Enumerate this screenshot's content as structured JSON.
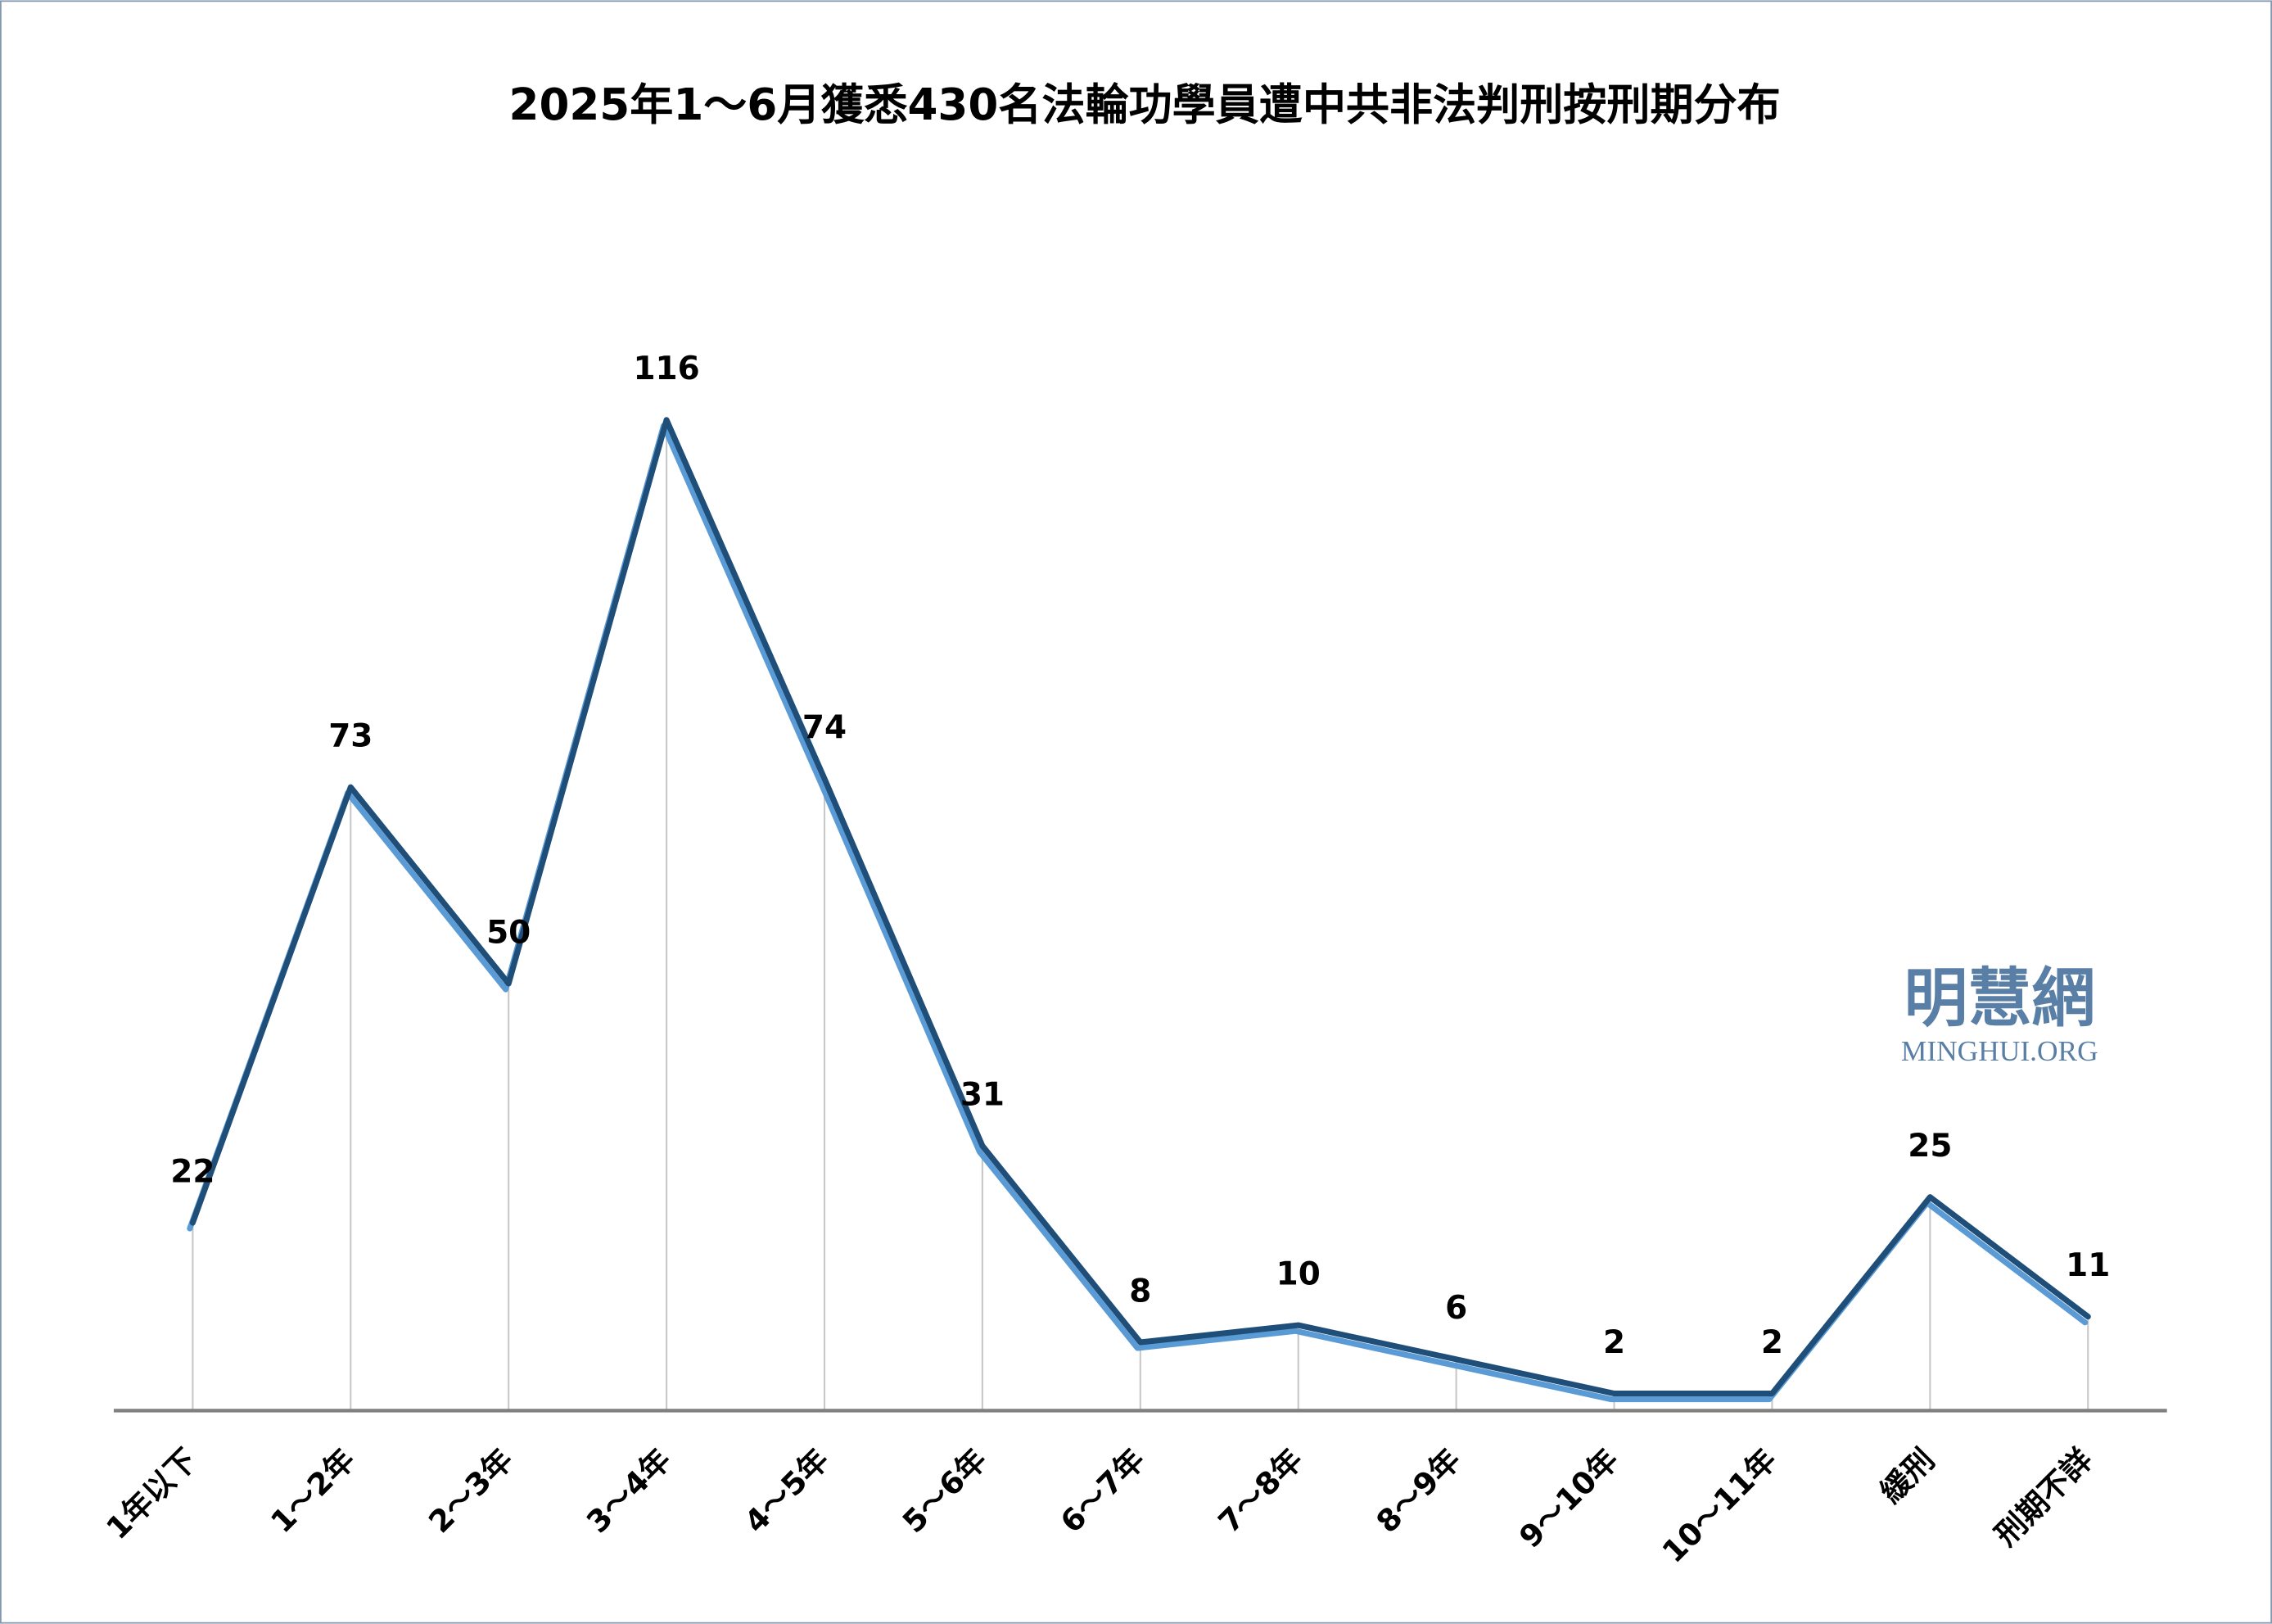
{
  "chart_data": {
    "type": "line",
    "title": "2025年1～6月獲悉430名法輪功學員遭中共非法判刑按刑期分布",
    "categories": [
      "1年以下",
      "1～2年",
      "2～3年",
      "3～4年",
      "4～5年",
      "5～6年",
      "6～7年",
      "7～8年",
      "8～9年",
      "9～10年",
      "10～11年",
      "緩刑",
      "刑期不詳"
    ],
    "values": [
      22,
      73,
      50,
      116,
      74,
      31,
      8,
      10,
      6,
      2,
      2,
      25,
      11
    ],
    "color": "#1f4e79",
    "ylim": [
      0,
      130
    ],
    "watermark": {
      "title": "明慧網",
      "subtitle": "MINGHUI.ORG"
    }
  }
}
